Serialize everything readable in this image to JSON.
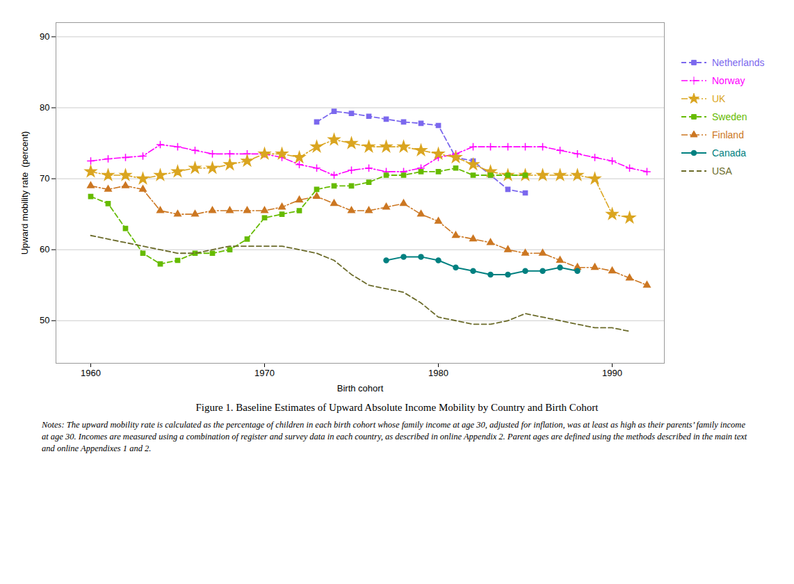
{
  "chart_data": {
    "type": "line",
    "title": "Figure 1. Baseline Estimates of Upward Absolute Income Mobility by Country and Birth Cohort",
    "notes": "Notes: The upward mobility rate is calculated as the percentage of children in each birth cohort whose family income at age 30, adjusted for inflation, was at least as high as their parents’ family income at age 30. Incomes are measured using a combination of register and survey data in each country, as described in online Appendix 2. Parent ages are defined using the methods described in the main text and online Appendixes 1 and 2.",
    "xlabel": "Birth cohort",
    "ylabel": "Upward mobility rate  (percent)",
    "xlim": [
      1958,
      1993
    ],
    "ylim": [
      44,
      92
    ],
    "xticks": [
      1960,
      1970,
      1980,
      1990
    ],
    "yticks": [
      50,
      60,
      70,
      80,
      90
    ],
    "grid": true,
    "legend": "right",
    "series": [
      {
        "name": "Netherlands",
        "color": "#7b68ee",
        "line_style": "dashed",
        "marker": "square",
        "x": [
          1973,
          1974,
          1975,
          1976,
          1977,
          1978,
          1979,
          1980,
          1981,
          1982,
          1983,
          1984,
          1985
        ],
        "values": [
          78.0,
          79.5,
          79.2,
          78.8,
          78.4,
          78.0,
          77.8,
          77.5,
          73.0,
          72.5,
          70.5,
          68.5,
          68.0
        ]
      },
      {
        "name": "Norway",
        "color": "#ff00ff",
        "line_style": "dashdot",
        "marker": "plus",
        "x": [
          1960,
          1961,
          1962,
          1963,
          1964,
          1965,
          1966,
          1967,
          1968,
          1969,
          1970,
          1971,
          1972,
          1973,
          1974,
          1975,
          1976,
          1977,
          1978,
          1979,
          1980,
          1981,
          1982,
          1983,
          1984,
          1985,
          1986,
          1987,
          1988,
          1989,
          1990,
          1991,
          1992
        ],
        "values": [
          72.5,
          72.8,
          73.0,
          73.2,
          74.8,
          74.5,
          74.0,
          73.5,
          73.5,
          73.5,
          73.5,
          73.0,
          72.0,
          71.5,
          70.5,
          71.2,
          71.5,
          71.0,
          71.0,
          71.5,
          73.0,
          73.5,
          74.5,
          74.5,
          74.5,
          74.5,
          74.5,
          74.0,
          73.5,
          73.0,
          72.5,
          71.5,
          71.0
        ]
      },
      {
        "name": "UK",
        "color": "#DAA520",
        "line_style": "dashdot",
        "marker": "star",
        "x": [
          1960,
          1961,
          1962,
          1963,
          1964,
          1965,
          1966,
          1967,
          1968,
          1969,
          1970,
          1971,
          1972,
          1973,
          1974,
          1975,
          1976,
          1977,
          1978,
          1979,
          1980,
          1981,
          1982,
          1983,
          1984,
          1985,
          1986,
          1987,
          1988,
          1989,
          1990,
          1991
        ],
        "values": [
          71.0,
          70.5,
          70.5,
          70.0,
          70.5,
          71.0,
          71.5,
          71.5,
          72.0,
          72.5,
          73.5,
          73.5,
          73.0,
          74.5,
          75.5,
          75.0,
          74.5,
          74.5,
          74.5,
          74.0,
          73.5,
          73.0,
          72.0,
          71.0,
          70.5,
          70.5,
          70.5,
          70.5,
          70.5,
          70.0,
          65.0,
          64.5
        ]
      },
      {
        "name": "Sweden",
        "color": "#66bb00",
        "line_style": "dashed",
        "marker": "square",
        "x": [
          1960,
          1961,
          1962,
          1963,
          1964,
          1965,
          1966,
          1967,
          1968,
          1969,
          1970,
          1971,
          1972,
          1973,
          1974,
          1975,
          1976,
          1977,
          1978,
          1979,
          1980,
          1981,
          1982,
          1983,
          1984,
          1985
        ],
        "values": [
          67.5,
          66.5,
          63.0,
          59.5,
          58.0,
          58.5,
          59.5,
          59.5,
          60.0,
          61.5,
          64.5,
          65.0,
          65.5,
          68.5,
          69.0,
          69.0,
          69.5,
          70.5,
          70.5,
          71.0,
          71.0,
          71.5,
          70.5,
          70.5,
          70.5,
          70.5
        ]
      },
      {
        "name": "Finland",
        "color": "#cc7722",
        "line_style": "dashdot",
        "marker": "triangle",
        "x": [
          1960,
          1961,
          1962,
          1963,
          1964,
          1965,
          1966,
          1967,
          1968,
          1969,
          1970,
          1971,
          1972,
          1973,
          1974,
          1975,
          1976,
          1977,
          1978,
          1979,
          1980,
          1981,
          1982,
          1983,
          1984,
          1985,
          1986,
          1987,
          1988,
          1989,
          1990,
          1991,
          1992
        ],
        "values": [
          69.0,
          68.5,
          69.0,
          68.5,
          65.5,
          65.0,
          65.0,
          65.5,
          65.5,
          65.5,
          65.5,
          66.0,
          67.0,
          67.5,
          66.5,
          65.5,
          65.5,
          66.0,
          66.5,
          65.0,
          64.0,
          62.0,
          61.5,
          61.0,
          60.0,
          59.5,
          59.5,
          58.5,
          57.5,
          57.5,
          57.0,
          56.0,
          55.0
        ]
      },
      {
        "name": "Canada",
        "color": "#008080",
        "line_style": "solid",
        "marker": "circle",
        "x": [
          1977,
          1978,
          1979,
          1980,
          1981,
          1982,
          1983,
          1984,
          1985,
          1986,
          1987,
          1988
        ],
        "values": [
          58.5,
          59.0,
          59.0,
          58.5,
          57.5,
          57.0,
          56.5,
          56.5,
          57.0,
          57.0,
          57.5,
          57.0
        ]
      },
      {
        "name": "USA",
        "color": "#6b6b2a",
        "line_style": "dashed",
        "x": [
          1960,
          1961,
          1962,
          1963,
          1964,
          1965,
          1966,
          1967,
          1968,
          1969,
          1970,
          1971,
          1972,
          1973,
          1974,
          1975,
          1976,
          1977,
          1978,
          1979,
          1980,
          1981,
          1982,
          1983,
          1984,
          1985,
          1986,
          1987,
          1988,
          1989,
          1990,
          1991
        ],
        "values": [
          62.0,
          61.5,
          61.0,
          60.5,
          60.0,
          59.5,
          59.5,
          60.0,
          60.5,
          60.5,
          60.5,
          60.5,
          60.0,
          59.5,
          58.5,
          56.5,
          55.0,
          54.5,
          54.0,
          52.5,
          50.5,
          50.0,
          49.5,
          49.5,
          50.0,
          51.0,
          50.5,
          50.0,
          49.5,
          49.0,
          49.0,
          48.5
        ]
      }
    ]
  }
}
